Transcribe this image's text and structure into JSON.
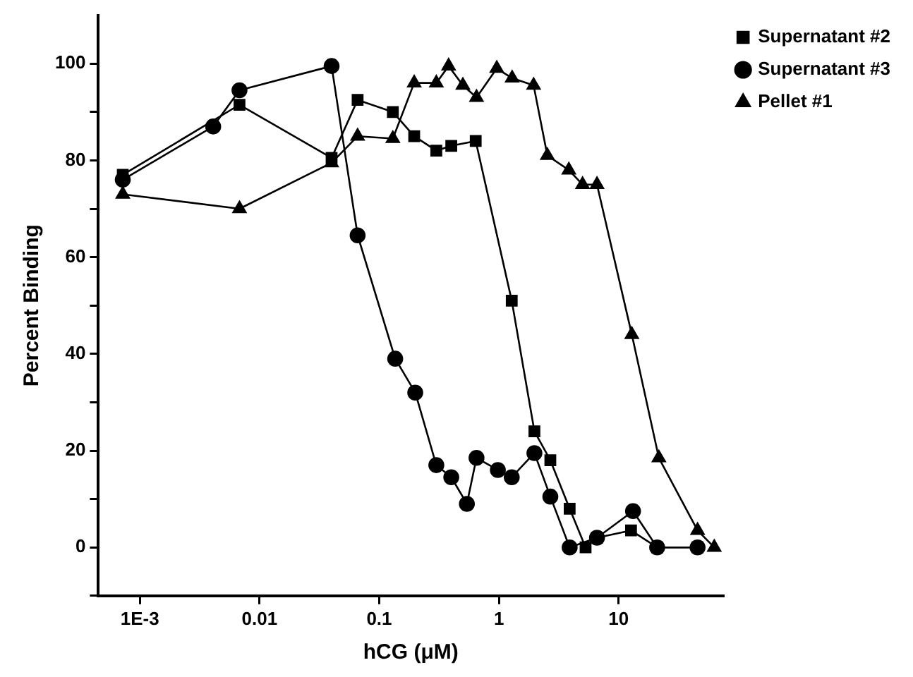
{
  "chart_data": {
    "type": "line",
    "xlabel": "hCG (μM)",
    "ylabel": "Percent Binding",
    "log": "x",
    "xlim": [
      0.00045,
      75
    ],
    "xticks": [
      {
        "value": 0.001,
        "label": "1E-3"
      },
      0.01,
      0.1,
      1,
      10
    ],
    "ylim": [
      -10,
      110
    ],
    "yticks": [
      {
        "value": -10,
        "label": null
      },
      0,
      {
        "value": 10,
        "label": null
      },
      20,
      {
        "value": 30,
        "label": null
      },
      40,
      {
        "value": 50,
        "label": null
      },
      60,
      {
        "value": 70,
        "label": null
      },
      80,
      {
        "value": 90,
        "label": null
      },
      100
    ],
    "grid": false,
    "legend": "top right",
    "line_style": "solid",
    "series": [
      {
        "name": "Supernatant #2",
        "color": "#000000",
        "marker": "square",
        "x": [
          0.00072,
          0.0068,
          0.04,
          0.066,
          0.13,
          0.196,
          0.3,
          0.4,
          0.64,
          1.28,
          1.98,
          2.69,
          3.9,
          5.3,
          6.6,
          12.7,
          21,
          45.7
        ],
        "values": [
          77,
          91.5,
          80.5,
          92.5,
          90,
          85,
          82,
          83,
          84,
          51,
          24,
          18,
          8,
          0,
          2,
          3.5,
          0,
          0
        ]
      },
      {
        "name": "Supernatant #3",
        "color": "#000000",
        "marker": "circle",
        "x": [
          0.00072,
          0.0041,
          0.0068,
          0.04,
          0.066,
          0.136,
          0.2,
          0.3,
          0.4,
          0.54,
          0.65,
          0.98,
          1.28,
          1.98,
          2.69,
          3.9,
          6.6,
          13.2,
          21,
          45.7
        ],
        "values": [
          76,
          87,
          94.5,
          99.5,
          64.5,
          39,
          32,
          17,
          14.5,
          9,
          18.5,
          16,
          14.5,
          19.5,
          10.5,
          0,
          2,
          7.5,
          0,
          0
        ]
      },
      {
        "name": "Pellet #1",
        "color": "#000000",
        "marker": "triangle",
        "x": [
          0.00072,
          0.0068,
          0.04,
          0.066,
          0.13,
          0.196,
          0.3,
          0.38,
          0.5,
          0.65,
          0.96,
          1.29,
          1.95,
          2.54,
          3.84,
          5,
          6.6,
          12.9,
          21.7,
          45.7,
          63
        ],
        "values": [
          73,
          70,
          79.5,
          85,
          84.5,
          96,
          96,
          99.5,
          95.5,
          93,
          99,
          97,
          95.5,
          81,
          78,
          75,
          75,
          44,
          18.5,
          3.5,
          0
        ]
      }
    ]
  }
}
